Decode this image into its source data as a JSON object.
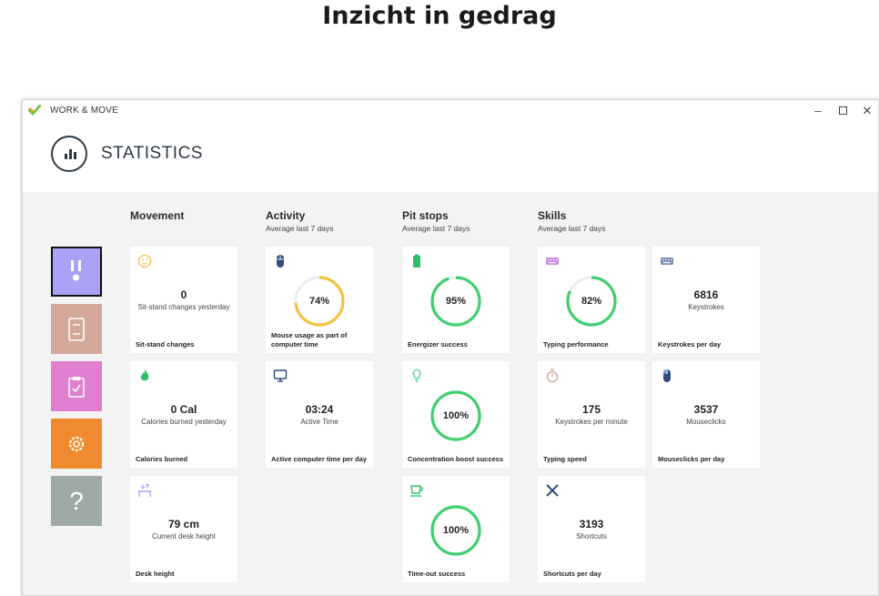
{
  "page": {
    "title": "Inzicht in gedrag"
  },
  "window": {
    "app_title": "WORK & MOVE",
    "controls": {
      "minimize": "–",
      "maximize": "",
      "close": "✕"
    }
  },
  "header": {
    "title": "STATISTICS",
    "icon": "bar-chart-icon"
  },
  "nav": [
    {
      "name": "movement",
      "icon": "standing-icon",
      "color": "#a9a2f5",
      "active": true
    },
    {
      "name": "pit-stops",
      "icon": "document-icon",
      "color": "#d4a79b"
    },
    {
      "name": "tasks",
      "icon": "clipboard-check-icon",
      "color": "#e07fd0"
    },
    {
      "name": "settings",
      "icon": "gear-icon",
      "color": "#ef8b2e"
    },
    {
      "name": "help",
      "icon": "question-icon",
      "color": "#9faaa8",
      "text": "?"
    }
  ],
  "columns": {
    "movement": {
      "title": "Movement",
      "subtitle": ""
    },
    "activity": {
      "title": "Activity",
      "subtitle": "Average last 7 days"
    },
    "pitstops": {
      "title": "Pit stops",
      "subtitle": "Average last 7 days"
    },
    "skills": {
      "title": "Skills",
      "subtitle": "Average last 7 days"
    }
  },
  "cards": {
    "sit_stand": {
      "icon": "smiley-icon",
      "value": "0",
      "sub": "Sit-stand changes yesterday",
      "label": "Sit-stand changes"
    },
    "calories": {
      "icon": "flame-icon",
      "value": "0 Cal",
      "sub": "Calories burned yesterday",
      "label": "Calories burned"
    },
    "desk": {
      "icon": "desk-height-icon",
      "value": "79 cm",
      "sub": "Current desk height",
      "label": "Desk height"
    },
    "mouse_usage": {
      "icon": "mouse-icon",
      "percent": "74%",
      "progress": 0.74,
      "label": "Mouse usage as part of computer time"
    },
    "active_time": {
      "icon": "monitor-icon",
      "value": "03:24",
      "sub": "Active Time",
      "label": "Active computer time per day"
    },
    "energizer": {
      "icon": "battery-icon",
      "percent": "95%",
      "progress": 0.95,
      "label": "Energizer success"
    },
    "concentration": {
      "icon": "lightbulb-icon",
      "percent": "100%",
      "progress": 1.0,
      "label": "Concentration boost success"
    },
    "timeout": {
      "icon": "coffee-cup-icon",
      "percent": "100%",
      "progress": 1.0,
      "label": "Time-out success"
    },
    "typing_perf": {
      "icon": "keyboard-icon",
      "percent": "82%",
      "progress": 0.82,
      "label": "Typing performance"
    },
    "typing_speed": {
      "icon": "stopwatch-icon",
      "value": "175",
      "sub": "Keystrokes per minute",
      "label": "Typing speed"
    },
    "shortcuts": {
      "icon": "tools-icon",
      "value": "3193",
      "sub": "Shortcuts",
      "label": "Shortcuts per day"
    },
    "keystrokes": {
      "icon": "keyboard-icon",
      "value": "6816",
      "sub": "Keystrokes",
      "label": "Keystrokes per day"
    },
    "mouseclicks": {
      "icon": "mouse-icon",
      "value": "3537",
      "sub": "Mouseclicks",
      "label": "Mouseclicks per day"
    }
  },
  "colors": {
    "ring_green": "#3fcf6e",
    "ring_yellow": "#f2c343",
    "ring_track": "#ececec",
    "movement_icon": "#b79ff5",
    "green_icon": "#2fbf6a",
    "activity_icon": "#2f4e7e",
    "typing_icon": "#c98be8",
    "stopwatch_icon": "#c9a089"
  }
}
